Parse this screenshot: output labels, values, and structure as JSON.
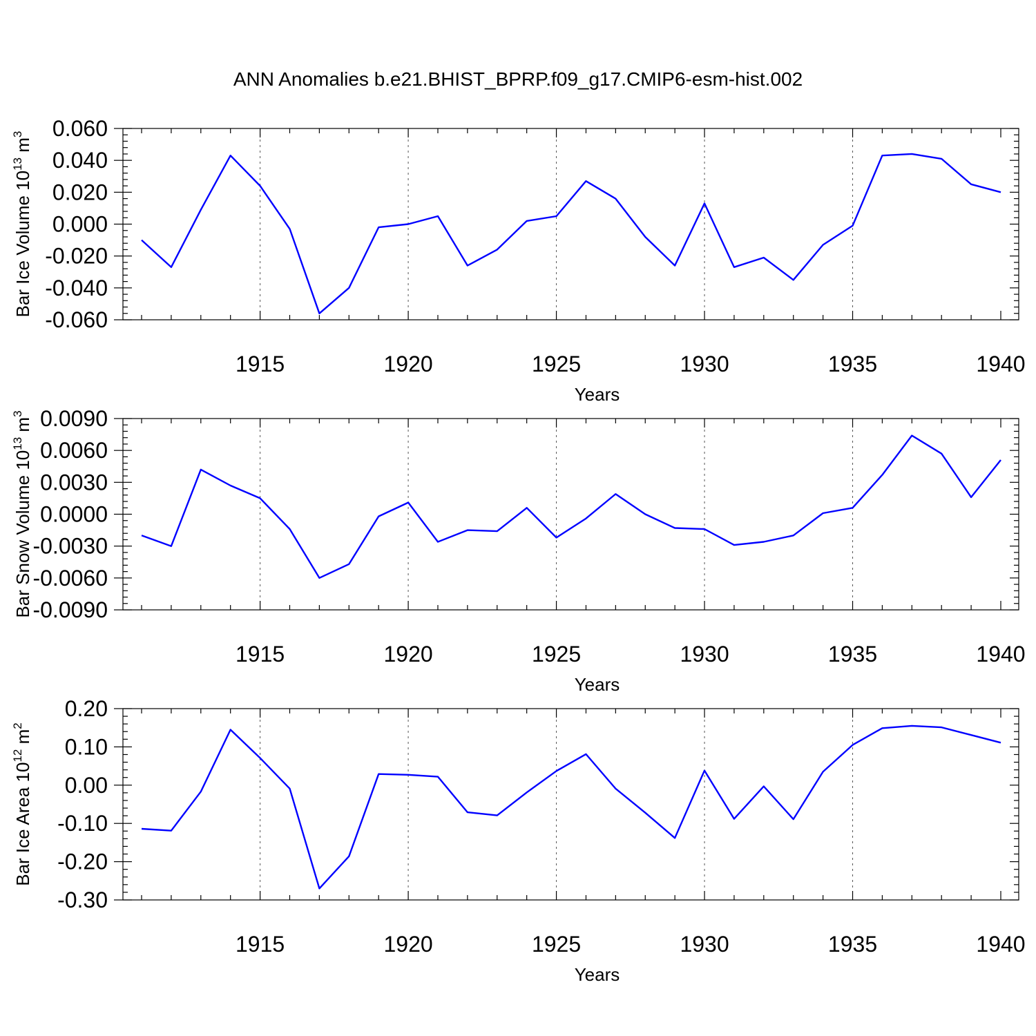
{
  "title": "ANN Anomalies b.e21.BHIST_BPRP.f09_g17.CMIP6-esm-hist.002",
  "line_color": "#0000ff",
  "chart_data": [
    {
      "type": "line",
      "ylabel": {
        "pre": "Bar Ice Volume 10",
        "sup1": "13",
        "mid": " m",
        "sup2": "3"
      },
      "xlabel": "Years",
      "xlim": [
        1911,
        1940
      ],
      "xticks": [
        1915,
        1920,
        1925,
        1930,
        1935,
        1940
      ],
      "ylim": [
        -0.06,
        0.06
      ],
      "yticks": [
        "0.060",
        "0.040",
        "0.020",
        "0.000",
        "-0.020",
        "-0.040",
        "-0.060"
      ],
      "ytick_values": [
        0.06,
        0.04,
        0.02,
        0.0,
        -0.02,
        -0.04,
        -0.06
      ],
      "grid_x": true,
      "x": [
        1911,
        1912,
        1913,
        1914,
        1915,
        1916,
        1917,
        1918,
        1919,
        1920,
        1921,
        1922,
        1923,
        1924,
        1925,
        1926,
        1927,
        1928,
        1929,
        1930,
        1931,
        1932,
        1933,
        1934,
        1935,
        1936,
        1937,
        1938,
        1939,
        1940
      ],
      "values": [
        -0.01,
        -0.027,
        0.009,
        0.043,
        0.024,
        -0.003,
        -0.056,
        -0.04,
        -0.002,
        0.0,
        0.005,
        -0.026,
        -0.016,
        0.002,
        0.005,
        0.027,
        0.016,
        -0.008,
        -0.026,
        0.013,
        -0.027,
        -0.021,
        -0.035,
        -0.013,
        -0.001,
        0.043,
        0.044,
        0.041,
        0.025,
        0.02
      ]
    },
    {
      "type": "line",
      "ylabel": {
        "pre": "Bar Snow Volume 10",
        "sup1": "13",
        "mid": " m",
        "sup2": "3"
      },
      "xlabel": "Years",
      "xlim": [
        1911,
        1940
      ],
      "xticks": [
        1915,
        1920,
        1925,
        1930,
        1935,
        1940
      ],
      "ylim": [
        -0.009,
        0.009
      ],
      "yticks": [
        "0.0090",
        "0.0060",
        "0.0030",
        "0.0000",
        "-0.0030",
        "-0.0060",
        "-0.0090"
      ],
      "ytick_values": [
        0.009,
        0.006,
        0.003,
        0.0,
        -0.003,
        -0.006,
        -0.009
      ],
      "grid_x": true,
      "x": [
        1911,
        1912,
        1913,
        1914,
        1915,
        1916,
        1917,
        1918,
        1919,
        1920,
        1921,
        1922,
        1923,
        1924,
        1925,
        1926,
        1927,
        1928,
        1929,
        1930,
        1931,
        1932,
        1933,
        1934,
        1935,
        1936,
        1937,
        1938,
        1939,
        1940
      ],
      "values": [
        -0.002,
        -0.003,
        0.0042,
        0.0027,
        0.0015,
        -0.0014,
        -0.006,
        -0.0047,
        -0.0002,
        0.0011,
        -0.0026,
        -0.0015,
        -0.0016,
        0.0006,
        -0.0022,
        -0.0004,
        0.0019,
        0.0,
        -0.0013,
        -0.0014,
        -0.0029,
        -0.0026,
        -0.002,
        0.0001,
        0.0006,
        0.0037,
        0.0074,
        0.0057,
        0.0016,
        0.0051
      ]
    },
    {
      "type": "line",
      "ylabel": {
        "pre": "Bar Ice Area 10",
        "sup1": "12",
        "mid": " m",
        "sup2": "2"
      },
      "xlabel": "Years",
      "xlim": [
        1911,
        1940
      ],
      "xticks": [
        1915,
        1920,
        1925,
        1930,
        1935,
        1940
      ],
      "ylim": [
        -0.3,
        0.2
      ],
      "yticks": [
        "0.20",
        "0.10",
        "0.00",
        "-0.10",
        "-0.20",
        "-0.30"
      ],
      "ytick_values": [
        0.2,
        0.1,
        0.0,
        -0.1,
        -0.2,
        -0.3
      ],
      "grid_x": true,
      "x": [
        1911,
        1912,
        1913,
        1914,
        1915,
        1916,
        1917,
        1918,
        1919,
        1920,
        1921,
        1922,
        1923,
        1924,
        1925,
        1926,
        1927,
        1928,
        1929,
        1930,
        1931,
        1932,
        1933,
        1934,
        1935,
        1936,
        1937,
        1938,
        1939,
        1940
      ],
      "values": [
        -0.114,
        -0.119,
        -0.017,
        0.145,
        0.071,
        -0.009,
        -0.27,
        -0.186,
        0.029,
        0.027,
        0.022,
        -0.071,
        -0.079,
        -0.019,
        0.037,
        0.081,
        -0.009,
        -0.072,
        -0.138,
        0.038,
        -0.088,
        -0.003,
        -0.089,
        0.035,
        0.105,
        0.149,
        0.155,
        0.151,
        0.131,
        0.111
      ]
    }
  ]
}
